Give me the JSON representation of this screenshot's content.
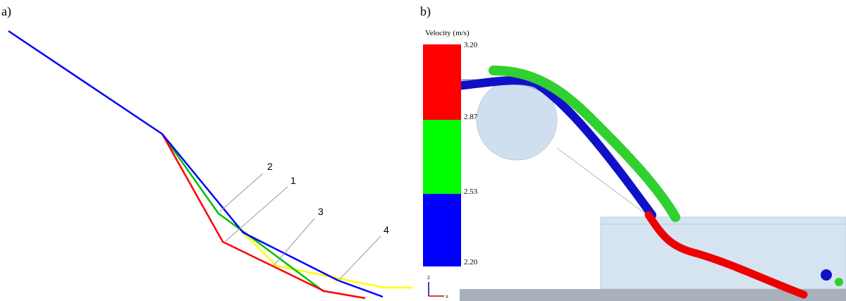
{
  "panel_a": {
    "label": "a)",
    "line_labels": [
      "2",
      "1",
      "3",
      "4"
    ]
  },
  "panel_b": {
    "label": "b)",
    "legend": {
      "title": "Velocity (m/s)",
      "ticks": [
        "3.20",
        "2.87",
        "2.53",
        "2.20"
      ]
    },
    "axes": [
      "z",
      "x"
    ]
  }
}
